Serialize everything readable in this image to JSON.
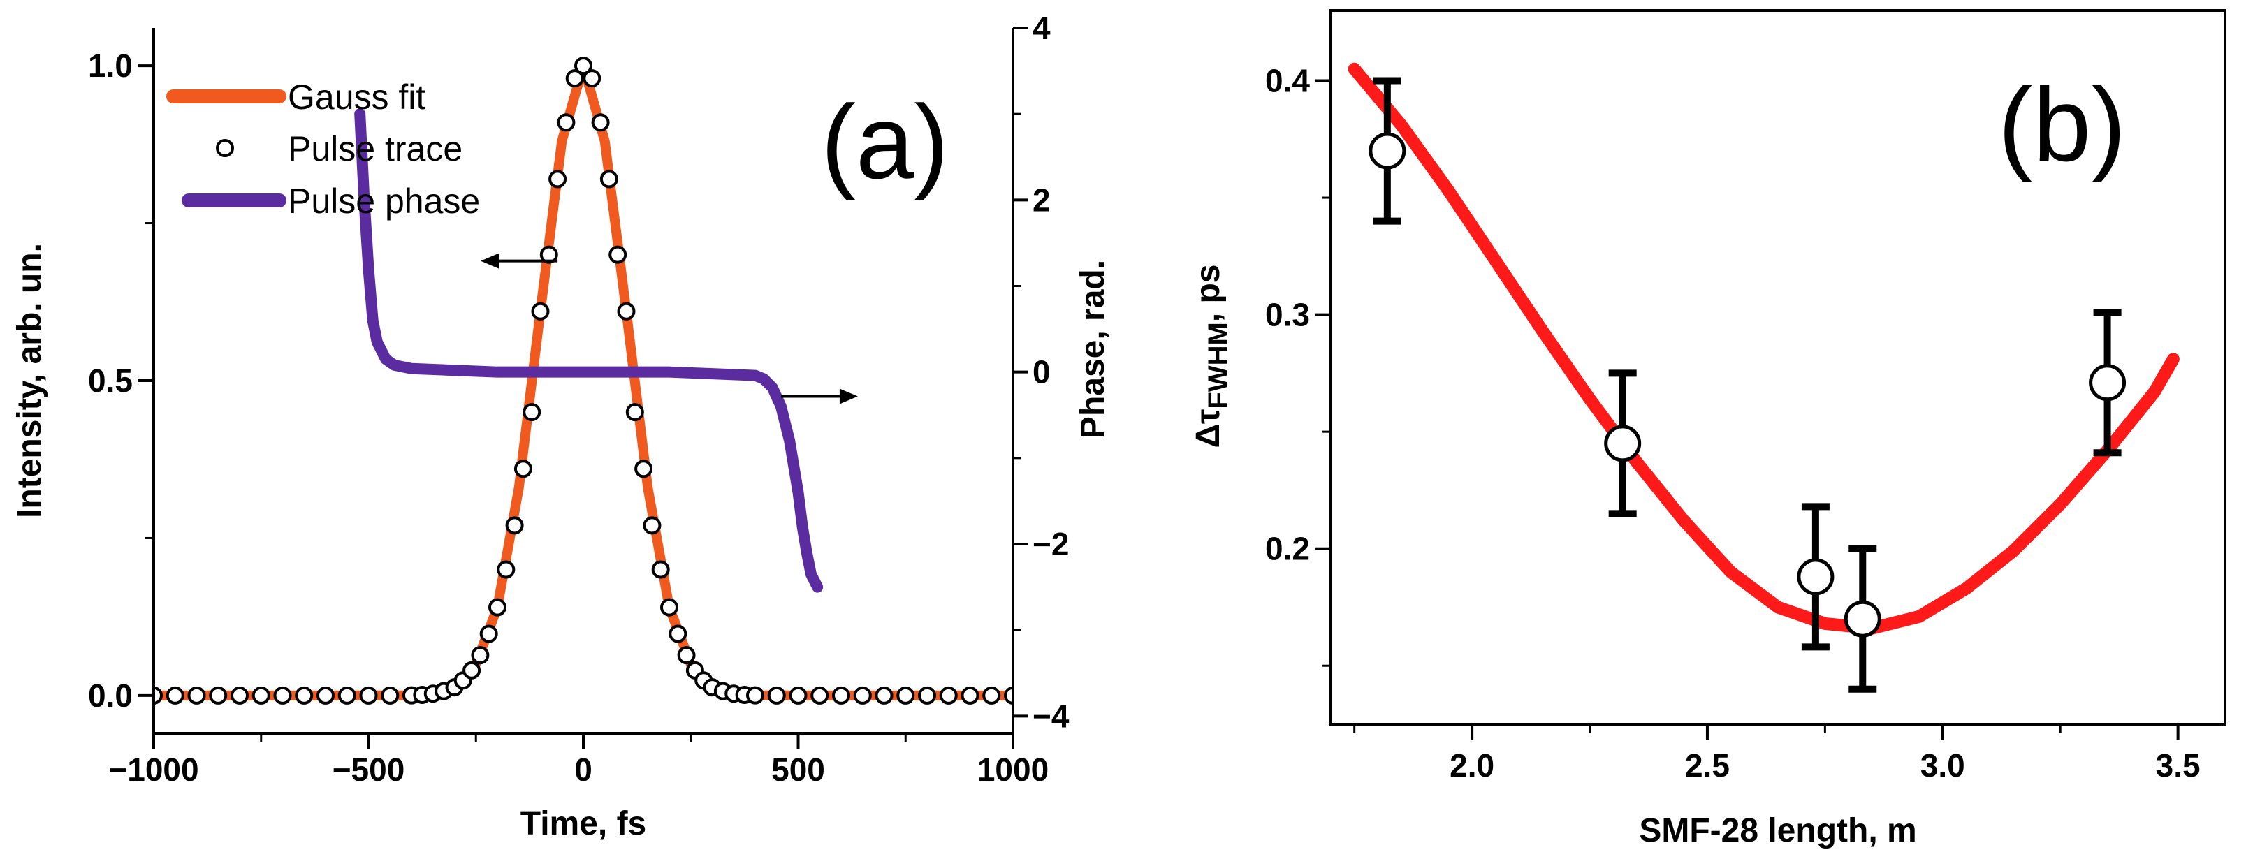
{
  "chart_data": [
    {
      "panel": "a",
      "type": "line",
      "panel_label": "(a)",
      "xlabel": "Time, fs",
      "ylabel": "Intensity, arb. un.",
      "y2label": "Phase, rad.",
      "xlim": [
        -1000,
        1000
      ],
      "ylim": [
        -0.06,
        1.06
      ],
      "y2lim": [
        -4.2,
        4.0
      ],
      "xticks": [
        -1000,
        -500,
        0,
        500,
        1000
      ],
      "xtick_labels": [
        "−1000",
        "−500",
        "0",
        "500",
        "1000"
      ],
      "yticks": [
        0.0,
        0.5,
        1.0
      ],
      "ytick_labels": [
        "0.0",
        "0.5",
        "1.0"
      ],
      "y2ticks": [
        -4,
        -2,
        0,
        2,
        4
      ],
      "y2tick_labels": [
        "−4",
        "−2",
        "0",
        "2",
        "4"
      ],
      "series": [
        {
          "name": "Gauss fit",
          "kind": "line",
          "color": "#f05a1e",
          "axis": "left",
          "x": [
            -1000,
            -600,
            -400,
            -350,
            -300,
            -250,
            -200,
            -150,
            -100,
            -50,
            0,
            50,
            100,
            150,
            200,
            250,
            300,
            350,
            400,
            600,
            1000
          ],
          "y": [
            0.0,
            0.0,
            0.0003,
            0.003,
            0.013,
            0.05,
            0.14,
            0.33,
            0.61,
            0.88,
            1.0,
            0.88,
            0.61,
            0.33,
            0.14,
            0.05,
            0.013,
            0.003,
            0.0003,
            0.0,
            0.0
          ]
        },
        {
          "name": "Pulse trace",
          "kind": "markers",
          "color": "#000000",
          "axis": "left",
          "x": [
            -1000,
            -950,
            -900,
            -850,
            -800,
            -750,
            -700,
            -650,
            -600,
            -550,
            -500,
            -450,
            -400,
            -375,
            -350,
            -325,
            -300,
            -280,
            -260,
            -240,
            -220,
            -200,
            -180,
            -160,
            -140,
            -120,
            -100,
            -80,
            -60,
            -40,
            -20,
            0,
            20,
            40,
            60,
            80,
            100,
            120,
            140,
            160,
            180,
            200,
            220,
            240,
            260,
            280,
            300,
            325,
            350,
            375,
            400,
            450,
            500,
            550,
            600,
            650,
            700,
            750,
            800,
            850,
            900,
            950,
            1000
          ],
          "y": [
            0.0,
            0.0,
            0.0,
            0.0,
            0.0,
            0.0,
            0.0,
            0.0,
            0.0,
            0.0,
            0.0,
            0.0,
            0.0003,
            0.001,
            0.003,
            0.007,
            0.013,
            0.024,
            0.04,
            0.064,
            0.098,
            0.14,
            0.2,
            0.27,
            0.36,
            0.45,
            0.61,
            0.7,
            0.82,
            0.91,
            0.98,
            1.0,
            0.98,
            0.91,
            0.82,
            0.7,
            0.61,
            0.45,
            0.36,
            0.27,
            0.2,
            0.14,
            0.098,
            0.064,
            0.04,
            0.024,
            0.013,
            0.007,
            0.003,
            0.001,
            0.0003,
            0.0,
            0.0,
            0.0,
            0.0,
            0.0,
            0.0,
            0.0,
            0.0,
            0.0,
            0.0,
            0.0,
            0.0
          ]
        },
        {
          "name": "Pulse phase",
          "kind": "line",
          "color": "#5b2ca0",
          "axis": "right",
          "x": [
            -520,
            -510,
            -500,
            -490,
            -480,
            -460,
            -440,
            -400,
            -300,
            -200,
            -100,
            0,
            100,
            200,
            300,
            400,
            420,
            440,
            460,
            480,
            500,
            510,
            520,
            530,
            545
          ],
          "y": [
            3.0,
            2.0,
            1.2,
            0.6,
            0.35,
            0.15,
            0.08,
            0.04,
            0.02,
            0.0,
            0.0,
            0.0,
            0.0,
            0.0,
            -0.02,
            -0.04,
            -0.08,
            -0.18,
            -0.4,
            -0.8,
            -1.4,
            -1.8,
            -2.1,
            -2.35,
            -2.5
          ]
        }
      ],
      "legend": [
        {
          "label": "Gauss fit",
          "kind": "line",
          "color": "#f05a1e"
        },
        {
          "label": "Pulse trace",
          "kind": "marker",
          "color": "#000000"
        },
        {
          "label": "Pulse phase",
          "kind": "line",
          "color": "#5b2ca0"
        }
      ],
      "annotations": [
        {
          "type": "arrow",
          "direction": "left",
          "x": -60,
          "y": 0.69,
          "note": "points to left axis"
        },
        {
          "type": "arrow",
          "direction": "right",
          "x": 460,
          "y": 0.475,
          "note": "points to right axis"
        }
      ]
    },
    {
      "panel": "b",
      "type": "scatter",
      "panel_label": "(b)",
      "xlabel": "SMF-28 length, m",
      "ylabel_main": "Δτ",
      "ylabel_sub": "FWHM",
      "ylabel_tail": ", ps",
      "xlim": [
        1.7,
        3.6
      ],
      "ylim": [
        0.125,
        0.43
      ],
      "xticks": [
        2.0,
        2.5,
        3.0,
        3.5
      ],
      "xtick_labels": [
        "2.0",
        "2.5",
        "3.0",
        "3.5"
      ],
      "yticks": [
        0.2,
        0.3,
        0.4
      ],
      "ytick_labels": [
        "0.2",
        "0.3",
        "0.4"
      ],
      "fit": {
        "color": "#ff1a1a",
        "x": [
          1.75,
          1.85,
          1.95,
          2.05,
          2.15,
          2.25,
          2.35,
          2.45,
          2.55,
          2.65,
          2.75,
          2.85,
          2.95,
          3.05,
          3.15,
          3.25,
          3.35,
          3.45,
          3.49
        ],
        "y": [
          0.405,
          0.381,
          0.353,
          0.323,
          0.293,
          0.264,
          0.237,
          0.212,
          0.19,
          0.175,
          0.168,
          0.166,
          0.171,
          0.183,
          0.199,
          0.219,
          0.242,
          0.267,
          0.281
        ]
      },
      "points": {
        "x": [
          1.82,
          2.32,
          2.73,
          2.83,
          3.35
        ],
        "y": [
          0.37,
          0.245,
          0.188,
          0.17,
          0.271
        ],
        "err": [
          0.03,
          0.03,
          0.03,
          0.03,
          0.03
        ]
      }
    }
  ]
}
